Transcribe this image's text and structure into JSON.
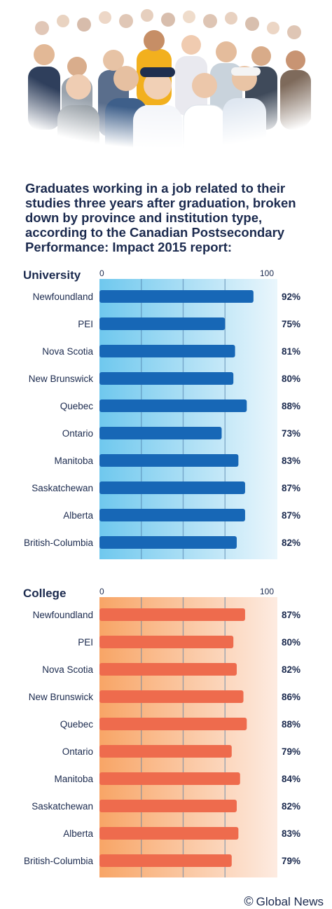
{
  "headline": "Graduates working in a job related to their studies three years after graduation, broken down by province and institution type, according to the Canadian Postsecondary Performance: Impact 2015 report:",
  "credit": {
    "symbol": "©",
    "text": "Global News"
  },
  "colors": {
    "headline": "#1b2a4e",
    "university_bar": "#1767b6",
    "university_panel_start": "#6fc8ee",
    "university_panel_end": "#eaf6fc",
    "college_bar": "#ee6b4d",
    "college_panel_start": "#f8a566",
    "college_panel_end": "#fdebe1",
    "text": "#1b2a4e"
  },
  "chart_data": [
    {
      "type": "bar",
      "orientation": "horizontal",
      "title": "University",
      "xlim": [
        0,
        100
      ],
      "xticks": [
        "0",
        "100"
      ],
      "grid": true,
      "categories": [
        "Newfoundland",
        "PEI",
        "Nova Scotia",
        "New Brunswick",
        "Quebec",
        "Ontario",
        "Manitoba",
        "Saskatchewan",
        "Alberta",
        "British-Columbia"
      ],
      "values": [
        92,
        75,
        81,
        80,
        88,
        73,
        83,
        87,
        87,
        82
      ],
      "value_labels": [
        "92%",
        "75%",
        "81%",
        "80%",
        "88%",
        "73%",
        "83%",
        "87%",
        "87%",
        "82%"
      ]
    },
    {
      "type": "bar",
      "orientation": "horizontal",
      "title": "College",
      "xlim": [
        0,
        100
      ],
      "xticks": [
        "0",
        "100"
      ],
      "grid": true,
      "categories": [
        "Newfoundland",
        "PEI",
        "Nova Scotia",
        "New Brunswick",
        "Quebec",
        "Ontario",
        "Manitoba",
        "Saskatchewan",
        "Alberta",
        "British-Columbia"
      ],
      "values": [
        87,
        80,
        82,
        86,
        88,
        79,
        84,
        82,
        83,
        79
      ],
      "value_labels": [
        "87%",
        "80%",
        "82%",
        "86%",
        "88%",
        "79%",
        "84%",
        "82%",
        "83%",
        "79%"
      ]
    }
  ]
}
